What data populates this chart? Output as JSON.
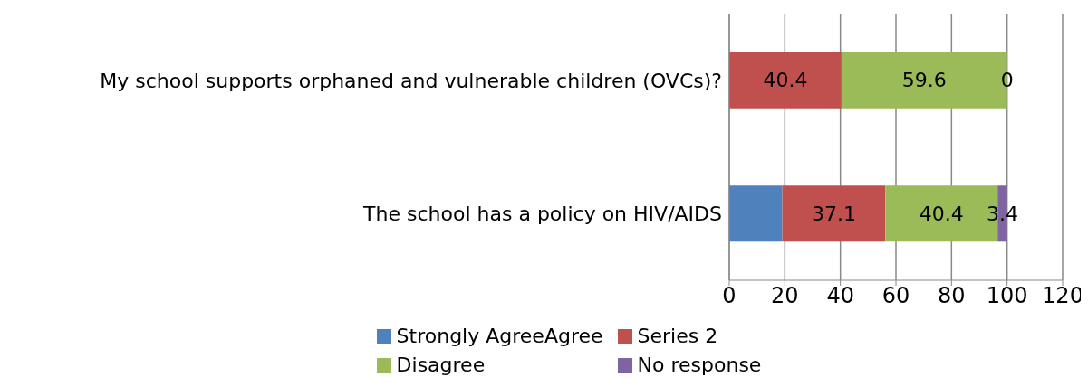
{
  "chart_data": {
    "type": "bar",
    "orientation": "horizontal",
    "stacked": true,
    "categories": [
      "My school supports orphaned and vulnerable children (OVCs)?",
      "The school has a policy on HIV/AIDS"
    ],
    "series": [
      {
        "name": "Strongly AgreeAgree",
        "color": "#4f81bd",
        "values": [
          null,
          19.1
        ]
      },
      {
        "name": "Series 2",
        "color": "#c0504d",
        "values": [
          40.4,
          37.1
        ],
        "value_labels": [
          "40.4",
          "37.1"
        ]
      },
      {
        "name": "Disagree",
        "color": "#9bbb59",
        "values": [
          59.6,
          40.4
        ],
        "value_labels": [
          "59.6",
          "40.4"
        ]
      },
      {
        "name": "No response",
        "color": "#8064a2",
        "values": [
          0,
          3.4
        ],
        "value_labels": [
          "0",
          "3.4"
        ]
      }
    ],
    "xlim": [
      0,
      120
    ],
    "xticks": [
      0,
      20,
      40,
      60,
      80,
      100,
      120
    ],
    "grid": "x",
    "legend": "bottom"
  }
}
